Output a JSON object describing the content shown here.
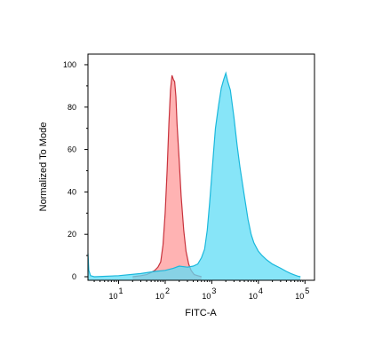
{
  "chart_data": {
    "type": "area",
    "xlabel": "FITC-A",
    "ylabel": "Normalized To Mode",
    "x_scale": "log",
    "xlim": [
      2.2,
      160000
    ],
    "ylim": [
      0,
      105
    ],
    "x_ticks": [
      {
        "value": 10,
        "base": "10",
        "exp": "1"
      },
      {
        "value": 100,
        "base": "10",
        "exp": "2"
      },
      {
        "value": 1000,
        "base": "10",
        "exp": "3"
      },
      {
        "value": 10000,
        "base": "10",
        "exp": "4"
      },
      {
        "value": 100000,
        "base": "10",
        "exp": "5"
      }
    ],
    "y_ticks": [
      {
        "value": 0,
        "label": "0"
      },
      {
        "value": 20,
        "label": "20"
      },
      {
        "value": 40,
        "label": "40"
      },
      {
        "value": 60,
        "label": "60"
      },
      {
        "value": 80,
        "label": "80"
      },
      {
        "value": 100,
        "label": "100"
      }
    ],
    "series": [
      {
        "fill": "#ff9a9a",
        "stroke": "#c8323c",
        "points": [
          [
            20,
            0
          ],
          [
            30,
            0.5
          ],
          [
            40,
            1
          ],
          [
            50,
            2
          ],
          [
            60,
            3
          ],
          [
            70,
            4.5
          ],
          [
            80,
            7
          ],
          [
            90,
            15
          ],
          [
            100,
            30
          ],
          [
            110,
            50
          ],
          [
            120,
            72
          ],
          [
            130,
            88
          ],
          [
            140,
            95
          ],
          [
            150,
            93
          ],
          [
            160,
            92
          ],
          [
            170,
            85
          ],
          [
            180,
            72
          ],
          [
            200,
            55
          ],
          [
            220,
            38
          ],
          [
            250,
            22
          ],
          [
            280,
            12
          ],
          [
            320,
            6
          ],
          [
            360,
            3
          ],
          [
            420,
            1
          ],
          [
            500,
            0.5
          ],
          [
            600,
            0
          ]
        ]
      },
      {
        "fill": "#5fdcf5",
        "stroke": "#1ab8dc",
        "points": [
          [
            2.2,
            11
          ],
          [
            2.3,
            3
          ],
          [
            2.5,
            0.5
          ],
          [
            3,
            0
          ],
          [
            10,
            0.5
          ],
          [
            30,
            1.5
          ],
          [
            60,
            2.5
          ],
          [
            100,
            3
          ],
          [
            150,
            4
          ],
          [
            200,
            5
          ],
          [
            300,
            4.5
          ],
          [
            400,
            5
          ],
          [
            500,
            6
          ],
          [
            600,
            9
          ],
          [
            700,
            13
          ],
          [
            800,
            22
          ],
          [
            900,
            35
          ],
          [
            1000,
            48
          ],
          [
            1100,
            60
          ],
          [
            1200,
            70
          ],
          [
            1400,
            81
          ],
          [
            1600,
            89
          ],
          [
            1800,
            93
          ],
          [
            2000,
            96
          ],
          [
            2200,
            92
          ],
          [
            2500,
            88
          ],
          [
            3000,
            75
          ],
          [
            3500,
            62
          ],
          [
            4000,
            52
          ],
          [
            5000,
            38
          ],
          [
            6000,
            27
          ],
          [
            7000,
            20
          ],
          [
            8000,
            16
          ],
          [
            10000,
            12
          ],
          [
            12000,
            10
          ],
          [
            15000,
            8
          ],
          [
            20000,
            6
          ],
          [
            30000,
            4
          ],
          [
            40000,
            2.5
          ],
          [
            50000,
            1.5
          ],
          [
            60000,
            0.8
          ],
          [
            70000,
            0.3
          ],
          [
            80000,
            0
          ]
        ]
      }
    ]
  }
}
